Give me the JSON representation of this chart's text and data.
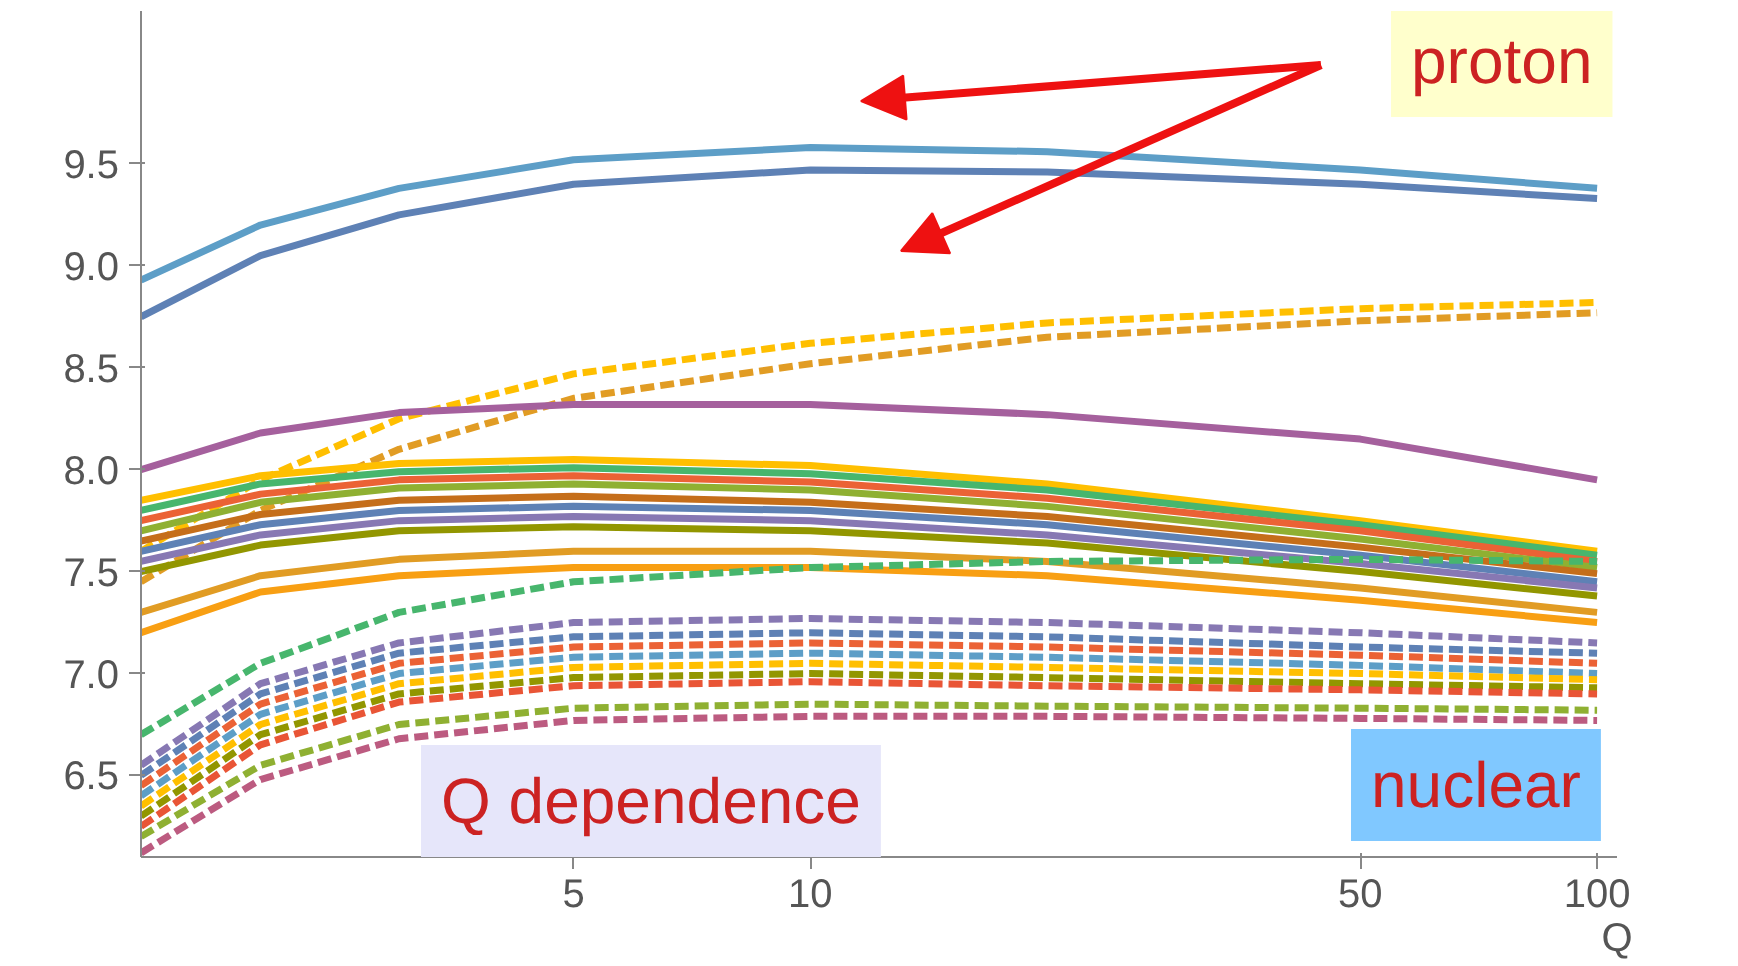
{
  "chart_data": {
    "type": "line",
    "xlabel": "Q",
    "log": "x",
    "x": [
      1.41,
      2,
      3,
      5,
      10,
      20,
      50,
      100
    ],
    "xlim": [
      1.41,
      106
    ],
    "xticks": [
      5,
      10,
      50,
      100
    ],
    "ylim": [
      6.1,
      10.25
    ],
    "yticks": [
      6.5,
      {
        "value": 7,
        "label": "7.0"
      },
      7.5,
      {
        "value": 8,
        "label": "8.0"
      },
      8.5,
      {
        "value": 9,
        "label": "9.0"
      },
      9.5
    ],
    "grid": false,
    "annotations": [
      "proton",
      "Q dependence",
      "nuclear"
    ],
    "series": [
      {
        "color": "#5d9ec7",
        "values": [
          8.93,
          9.2,
          9.38,
          9.52,
          9.58,
          9.56,
          9.47,
          9.38
        ]
      },
      {
        "color": "#5e81b5",
        "values": [
          8.75,
          9.05,
          9.25,
          9.4,
          9.47,
          9.46,
          9.4,
          9.33
        ]
      },
      {
        "color": "#ffbf00",
        "line_style": "dashed",
        "values": [
          7.6,
          7.95,
          8.25,
          8.47,
          8.62,
          8.72,
          8.79,
          8.82
        ]
      },
      {
        "color": "#e19c24",
        "line_style": "dashed",
        "values": [
          7.45,
          7.8,
          8.1,
          8.35,
          8.52,
          8.65,
          8.73,
          8.77
        ]
      },
      {
        "color": "#a5609d",
        "values": [
          8.0,
          8.18,
          8.28,
          8.32,
          8.32,
          8.27,
          8.15,
          7.95
        ]
      },
      {
        "color": "#ffbf00",
        "values": [
          7.85,
          7.97,
          8.03,
          8.05,
          8.02,
          7.93,
          7.75,
          7.6
        ]
      },
      {
        "color": "#47b66d",
        "values": [
          7.8,
          7.93,
          7.99,
          8.01,
          7.98,
          7.9,
          7.73,
          7.58
        ]
      },
      {
        "color": "#eb6235",
        "values": [
          7.75,
          7.88,
          7.95,
          7.97,
          7.94,
          7.86,
          7.7,
          7.55
        ]
      },
      {
        "color": "#8fb032",
        "values": [
          7.7,
          7.84,
          7.91,
          7.93,
          7.9,
          7.82,
          7.66,
          7.52
        ]
      },
      {
        "color": "#c56e1a",
        "values": [
          7.65,
          7.78,
          7.85,
          7.87,
          7.84,
          7.77,
          7.62,
          7.49
        ]
      },
      {
        "color": "#5e81b5",
        "values": [
          7.6,
          7.73,
          7.8,
          7.82,
          7.8,
          7.73,
          7.58,
          7.45
        ]
      },
      {
        "color": "#8778b3",
        "values": [
          7.55,
          7.68,
          7.75,
          7.77,
          7.75,
          7.68,
          7.54,
          7.42
        ]
      },
      {
        "color": "#929600",
        "values": [
          7.5,
          7.63,
          7.7,
          7.72,
          7.7,
          7.64,
          7.5,
          7.38
        ]
      },
      {
        "color": "#e19c24",
        "values": [
          7.3,
          7.48,
          7.56,
          7.6,
          7.6,
          7.55,
          7.42,
          7.3
        ]
      },
      {
        "color": "#f89f13",
        "values": [
          7.2,
          7.4,
          7.48,
          7.52,
          7.52,
          7.48,
          7.36,
          7.25
        ]
      },
      {
        "color": "#47b66d",
        "line_style": "dashed",
        "values": [
          6.7,
          7.05,
          7.3,
          7.45,
          7.52,
          7.55,
          7.56,
          7.55
        ]
      },
      {
        "color": "#8778b3",
        "line_style": "dashed",
        "values": [
          6.55,
          6.95,
          7.15,
          7.25,
          7.27,
          7.25,
          7.2,
          7.15
        ]
      },
      {
        "color": "#5e81b5",
        "line_style": "dashed",
        "values": [
          6.5,
          6.9,
          7.1,
          7.18,
          7.2,
          7.18,
          7.13,
          7.1
        ]
      },
      {
        "color": "#eb6235",
        "line_style": "dashed",
        "values": [
          6.45,
          6.85,
          7.05,
          7.13,
          7.15,
          7.13,
          7.09,
          7.05
        ]
      },
      {
        "color": "#5d9ec7",
        "line_style": "dashed",
        "values": [
          6.4,
          6.8,
          7.0,
          7.08,
          7.1,
          7.08,
          7.04,
          7.0
        ]
      },
      {
        "color": "#ffbf00",
        "line_style": "dashed",
        "values": [
          6.35,
          6.75,
          6.95,
          7.03,
          7.05,
          7.03,
          7.0,
          6.97
        ]
      },
      {
        "color": "#929600",
        "line_style": "dashed",
        "values": [
          6.3,
          6.7,
          6.9,
          6.98,
          7.0,
          6.98,
          6.95,
          6.93
        ]
      },
      {
        "color": "#e95536",
        "line_style": "dashed",
        "values": [
          6.25,
          6.65,
          6.86,
          6.94,
          6.96,
          6.94,
          6.92,
          6.9
        ]
      },
      {
        "color": "#8fb032",
        "line_style": "dashed",
        "values": [
          6.2,
          6.55,
          6.75,
          6.83,
          6.85,
          6.84,
          6.83,
          6.82
        ]
      },
      {
        "color": "#bc5b80",
        "line_style": "dashed",
        "values": [
          6.12,
          6.48,
          6.68,
          6.77,
          6.79,
          6.79,
          6.78,
          6.77
        ]
      }
    ]
  }
}
